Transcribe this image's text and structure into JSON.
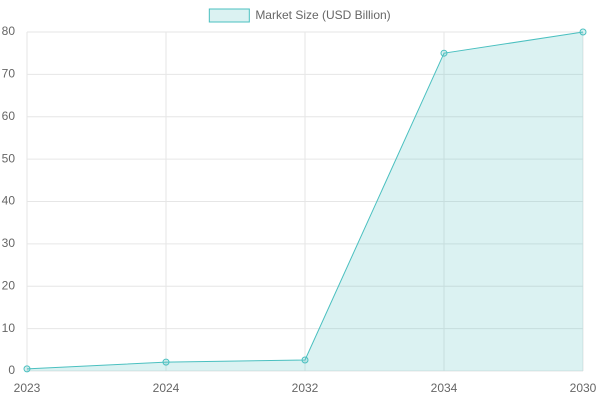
{
  "chart_data": {
    "type": "line",
    "categories": [
      "2023",
      "2024",
      "2032",
      "2034",
      "2030"
    ],
    "series": [
      {
        "name": "Market Size (USD Billion)",
        "color": "#4bc0c0",
        "values": [
          0.5,
          2.1,
          2.6,
          75,
          80
        ]
      }
    ],
    "fill": true,
    "ylim": [
      0,
      80
    ],
    "yticks": [
      0,
      10,
      20,
      30,
      40,
      50,
      60,
      70,
      80
    ],
    "grid": true,
    "legend": "top"
  }
}
